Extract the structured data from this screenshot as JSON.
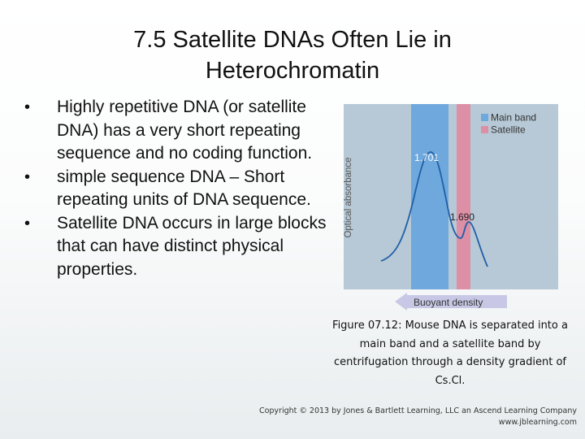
{
  "title": {
    "line1": "7.5  Satellite DNAs Often Lie in",
    "line2": "Heterochromatin"
  },
  "bullets": [
    "Highly repetitive DNA (or satellite DNA) has a very short repeating sequence and no coding function.",
    "simple sequence DNA – Short repeating units of DNA sequence.",
    "Satellite DNA occurs in large blocks that can have distinct physical properties."
  ],
  "figure": {
    "legend": [
      {
        "label": "Main band",
        "color": "#6fa8dc"
      },
      {
        "label": "Satellite",
        "color": "#dd8fa6"
      }
    ],
    "ylabel": "Optical absorbance",
    "xlabel": "Buoyant density",
    "peak_main": "1.701",
    "peak_satellite": "1.690",
    "panel_color": "#b7c9d6",
    "curve_color": "#1f5fa8"
  },
  "caption": "Figure 07.12: Mouse DNA is separated into a main band and a satellite band by centrifugation through a density gradient of Cs.Cl.",
  "copyright": {
    "line1": "Copyright © 2013 by Jones & Bartlett Learning, LLC an Ascend Learning Company",
    "line2": "www.jblearning.com"
  }
}
